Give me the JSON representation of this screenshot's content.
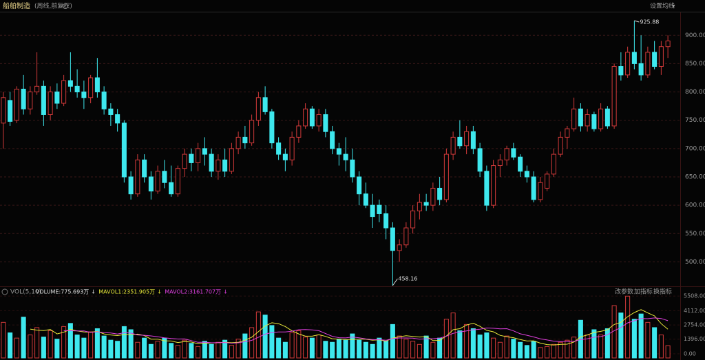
{
  "toolbar": {
    "ma_setting": "设置均线",
    "buttons": [
      "改参数",
      "加指标",
      "换指标"
    ]
  },
  "chart_data": [
    {
      "type": "candlestick",
      "title": "船舶制造",
      "subtitle": "(周线,前复权)",
      "ylim": [
        458,
        938
      ],
      "yticks": [
        {
          "value": 500,
          "label": "500.00"
        },
        {
          "value": 550,
          "label": "550.00"
        },
        {
          "value": 600,
          "label": "600.00"
        },
        {
          "value": 650,
          "label": "650.00"
        },
        {
          "value": 700,
          "label": "700.00"
        },
        {
          "value": 750,
          "label": "750.00"
        },
        {
          "value": 800,
          "label": "800.00"
        },
        {
          "value": 850,
          "label": "850.00"
        },
        {
          "value": 900,
          "label": "900.00"
        }
      ],
      "grid": true,
      "up_color": "#d23a3a",
      "down_color": "#3ee8ee",
      "annotations": [
        925.88,
        458.16
      ],
      "candles": [
        [
          745,
          800,
          700,
          790
        ],
        [
          785,
          800,
          740,
          748
        ],
        [
          750,
          810,
          745,
          805
        ],
        [
          805,
          830,
          760,
          770
        ],
        [
          770,
          810,
          760,
          800
        ],
        [
          800,
          870,
          795,
          810
        ],
        [
          810,
          820,
          740,
          760
        ],
        [
          760,
          810,
          750,
          800
        ],
        [
          800,
          815,
          770,
          780
        ],
        [
          780,
          830,
          775,
          820
        ],
        [
          820,
          870,
          800,
          810
        ],
        [
          810,
          840,
          790,
          800
        ],
        [
          800,
          820,
          770,
          790
        ],
        [
          790,
          830,
          780,
          825
        ],
        [
          825,
          860,
          790,
          800
        ],
        [
          800,
          810,
          760,
          770
        ],
        [
          770,
          780,
          740,
          760
        ],
        [
          760,
          770,
          730,
          745
        ],
        [
          745,
          750,
          640,
          650
        ],
        [
          650,
          660,
          610,
          620
        ],
        [
          620,
          690,
          615,
          680
        ],
        [
          680,
          690,
          640,
          650
        ],
        [
          650,
          660,
          610,
          625
        ],
        [
          625,
          670,
          620,
          660
        ],
        [
          660,
          680,
          630,
          640
        ],
        [
          640,
          670,
          615,
          620
        ],
        [
          620,
          670,
          615,
          665
        ],
        [
          665,
          700,
          650,
          690
        ],
        [
          690,
          700,
          660,
          675
        ],
        [
          675,
          710,
          660,
          700
        ],
        [
          700,
          720,
          670,
          690
        ],
        [
          690,
          700,
          650,
          660
        ],
        [
          660,
          690,
          645,
          680
        ],
        [
          680,
          700,
          650,
          660
        ],
        [
          660,
          710,
          655,
          700
        ],
        [
          700,
          730,
          690,
          720
        ],
        [
          720,
          740,
          700,
          710
        ],
        [
          710,
          760,
          705,
          750
        ],
        [
          750,
          800,
          740,
          790
        ],
        [
          790,
          810,
          760,
          765
        ],
        [
          765,
          770,
          700,
          710
        ],
        [
          710,
          720,
          680,
          690
        ],
        [
          690,
          700,
          660,
          680
        ],
        [
          680,
          730,
          670,
          720
        ],
        [
          720,
          750,
          710,
          740
        ],
        [
          740,
          780,
          735,
          770
        ],
        [
          770,
          775,
          735,
          740
        ],
        [
          740,
          770,
          730,
          760
        ],
        [
          760,
          770,
          720,
          730
        ],
        [
          730,
          740,
          690,
          700
        ],
        [
          700,
          710,
          670,
          690
        ],
        [
          690,
          720,
          660,
          680
        ],
        [
          680,
          700,
          640,
          650
        ],
        [
          650,
          660,
          600,
          620
        ],
        [
          620,
          640,
          595,
          600
        ],
        [
          600,
          620,
          560,
          580
        ],
        [
          600,
          610,
          570,
          585
        ],
        [
          585,
          600,
          540,
          560
        ],
        [
          560,
          570,
          458.16,
          520
        ],
        [
          520,
          540,
          500,
          530
        ],
        [
          530,
          570,
          525,
          560
        ],
        [
          560,
          600,
          550,
          590
        ],
        [
          590,
          620,
          575,
          605
        ],
        [
          605,
          620,
          590,
          600
        ],
        [
          600,
          640,
          590,
          630
        ],
        [
          630,
          650,
          600,
          610
        ],
        [
          610,
          700,
          605,
          690
        ],
        [
          690,
          730,
          680,
          720
        ],
        [
          720,
          750,
          700,
          705
        ],
        [
          705,
          740,
          690,
          730
        ],
        [
          730,
          740,
          690,
          700
        ],
        [
          700,
          710,
          650,
          660
        ],
        [
          660,
          670,
          590,
          600
        ],
        [
          600,
          680,
          595,
          670
        ],
        [
          670,
          690,
          650,
          680
        ],
        [
          680,
          705,
          670,
          700
        ],
        [
          700,
          710,
          680,
          685
        ],
        [
          685,
          690,
          650,
          660
        ],
        [
          660,
          670,
          640,
          650
        ],
        [
          650,
          660,
          605,
          610
        ],
        [
          610,
          650,
          605,
          640
        ],
        [
          630,
          660,
          625,
          655
        ],
        [
          655,
          700,
          650,
          690
        ],
        [
          690,
          730,
          685,
          720
        ],
        [
          720,
          740,
          700,
          735
        ],
        [
          735,
          790,
          730,
          770
        ],
        [
          770,
          780,
          730,
          740
        ],
        [
          740,
          770,
          730,
          760
        ],
        [
          760,
          765,
          730,
          735
        ],
        [
          735,
          780,
          730,
          770
        ],
        [
          770,
          775,
          735,
          740
        ],
        [
          740,
          850,
          735,
          845
        ],
        [
          845,
          870,
          820,
          830
        ],
        [
          830,
          880,
          825,
          870
        ],
        [
          870,
          925.88,
          840,
          850
        ],
        [
          850,
          900,
          820,
          830
        ],
        [
          830,
          880,
          825,
          870
        ],
        [
          870,
          890,
          840,
          845
        ],
        [
          845,
          890,
          830,
          880
        ],
        [
          880,
          900,
          860,
          890
        ]
      ]
    },
    {
      "type": "bar",
      "title": "VOL(5,10)",
      "legend": [
        "VOLUME:775.693万",
        "MAVOL1:2351.905万",
        "MAVOL2:3161.707万"
      ],
      "legend_colors": [
        "#e0e0e0",
        "#e8e83a",
        "#e040e0"
      ],
      "ylim": [
        0,
        5780
      ],
      "yticks": [
        {
          "value": 0,
          "label": "0.00"
        },
        {
          "value": 1396,
          "label": "1396.00"
        },
        {
          "value": 2754,
          "label": "2754.00"
        },
        {
          "value": 4112,
          "label": "4112.00"
        },
        {
          "value": 5508,
          "label": "5508.00"
        }
      ],
      "values": [
        3000,
        2000,
        1500,
        3500,
        1800,
        2500,
        1600,
        2200,
        1400,
        2600,
        2900,
        1800,
        1500,
        2100,
        2400,
        1700,
        1300,
        1200,
        2600,
        2300,
        1100,
        1500,
        900,
        1200,
        1500,
        1000,
        800,
        1300,
        1000,
        700,
        1200,
        900,
        1100,
        1300,
        800,
        1400,
        1900,
        2500,
        4000,
        3700,
        2700,
        1500,
        1100,
        2000,
        2200,
        1600,
        1500,
        1800,
        1200,
        1100,
        1400,
        1300,
        1900,
        1300,
        1100,
        900,
        1500,
        1200,
        2800,
        1700,
        1400,
        1200,
        900,
        1700,
        1100,
        1500,
        3300,
        3900,
        2200,
        2800,
        2400,
        1800,
        2000,
        1500,
        1100,
        1700,
        1400,
        1100,
        800,
        1200,
        600,
        700,
        900,
        1100,
        1300,
        1600,
        3200,
        1800,
        2300,
        1800,
        2400,
        4600,
        3900,
        5500,
        3300,
        3800,
        3000,
        2500,
        1800,
        775.693
      ],
      "series": [
        {
          "color": "#e8e83a",
          "values": [
            null,
            null,
            null,
            null,
            2360,
            2260,
            2220,
            2320,
            1900,
            2060,
            2340,
            2180,
            2080,
            2060,
            2140,
            1900,
            1800,
            1740,
            1840,
            1820,
            1880,
            1740,
            1400,
            1400,
            1240,
            1220,
            1080,
            1160,
            1120,
            960,
            1000,
            1040,
            1060,
            1100,
            1060,
            1100,
            1300,
            1580,
            2120,
            2660,
            2960,
            2880,
            2600,
            2200,
            1900,
            1680,
            1680,
            1820,
            1660,
            1440,
            1400,
            1360,
            1380,
            1400,
            1400,
            1300,
            1340,
            1200,
            1500,
            1620,
            1720,
            1660,
            1600,
            1640,
            1260,
            1280,
            1700,
            2300,
            2400,
            2740,
            2920,
            2620,
            2240,
            2100,
            1760,
            1620,
            1540,
            1360,
            1220,
            1240,
            1020,
            880,
            840,
            900,
            920,
            1120,
            1620,
            1800,
            2040,
            2140,
            2300,
            2800,
            3000,
            3540,
            3940,
            4220,
            3900,
            3620,
            2880,
            2351.905
          ]
        },
        {
          "color": "#e040e0",
          "values": [
            null,
            null,
            null,
            null,
            null,
            null,
            null,
            null,
            null,
            2210,
            2200,
            2180,
            2180,
            2040,
            2100,
            2020,
            1990,
            1890,
            2010,
            1980,
            1800,
            1770,
            1710,
            1620,
            1530,
            1460,
            1410,
            1420,
            1260,
            1100,
            1110,
            1050,
            1070,
            1080,
            1010,
            1050,
            1160,
            1280,
            1580,
            1880,
            2030,
            2090,
            2090,
            2160,
            2300,
            2320,
            2280,
            2210,
            1930,
            1670,
            1540,
            1520,
            1600,
            1530,
            1420,
            1350,
            1350,
            1290,
            1450,
            1510,
            1510,
            1500,
            1400,
            1440,
            1440,
            1500,
            1680,
            1950,
            2080,
            2190,
            2290,
            2350,
            2460,
            2440,
            2380,
            2400,
            2190,
            1910,
            1770,
            1610,
            1430,
            1320,
            1210,
            1170,
            1190,
            1180,
            1360,
            1430,
            1580,
            1640,
            1820,
            2210,
            2510,
            2950,
            3150,
            3370,
            3350,
            3420,
            3370,
            3161.707
          ]
        }
      ]
    }
  ]
}
